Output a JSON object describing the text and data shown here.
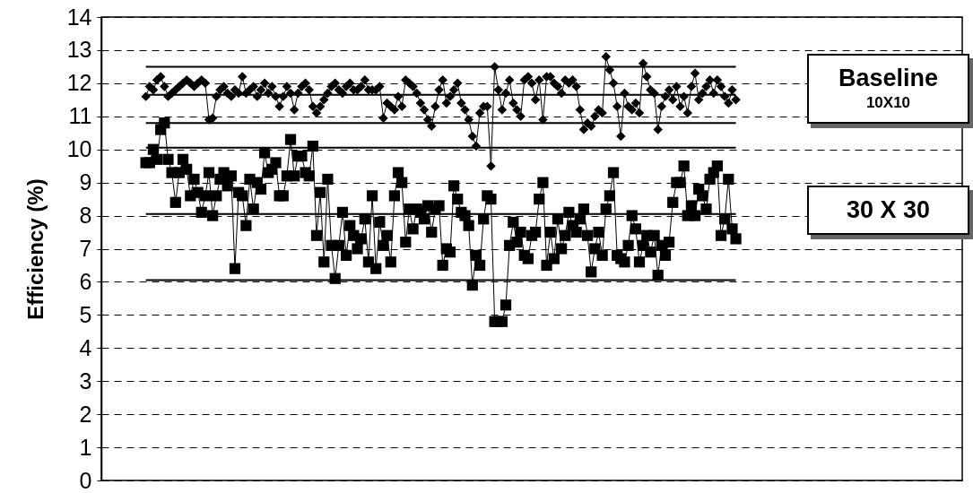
{
  "chart_data": {
    "type": "line",
    "ylabel": "Efficiency (%)",
    "ylim": [
      0,
      14
    ],
    "yticks": [
      0,
      1,
      2,
      3,
      4,
      5,
      6,
      7,
      8,
      9,
      10,
      11,
      12,
      13,
      14
    ],
    "grid": "y",
    "legend": "right",
    "line_style": "solid",
    "categories": [
      null,
      null,
      null,
      null,
      null,
      null,
      null,
      null,
      null,
      null,
      null,
      null,
      null,
      null,
      null,
      null,
      null,
      null,
      null,
      null,
      null,
      null,
      null,
      null,
      null,
      null,
      null,
      null,
      null,
      null,
      null,
      null,
      null,
      null,
      null,
      null,
      null,
      null,
      null,
      null,
      null,
      null,
      null,
      null,
      null,
      null,
      null,
      null,
      null,
      null,
      null,
      null,
      null,
      null,
      null,
      null,
      null,
      null,
      null,
      null,
      null,
      null,
      null,
      null,
      null,
      null,
      null,
      null,
      null,
      null,
      null,
      null,
      null,
      null,
      null,
      null,
      null,
      null,
      null,
      null,
      null,
      null,
      null,
      null,
      null,
      null,
      null,
      null,
      null,
      null,
      null,
      null,
      null,
      null,
      null,
      null,
      null,
      null,
      null,
      null,
      null,
      null,
      null,
      null,
      null,
      null,
      null,
      null,
      null,
      null,
      null,
      null,
      null,
      null,
      null,
      null,
      null,
      null,
      null,
      null,
      null,
      null,
      null,
      null,
      null,
      null,
      null,
      null,
      null,
      null,
      null,
      null,
      null,
      null,
      null,
      null,
      null,
      null,
      null,
      null,
      null,
      null,
      null,
      null,
      null,
      null,
      null,
      null,
      null,
      null,
      null,
      null,
      null,
      null,
      null,
      null,
      null,
      null,
      null,
      null
    ],
    "series": [
      {
        "name": "Baseline",
        "color": "#000000",
        "marker": "diamond",
        "values": [
          11.6,
          11.9,
          11.8,
          12.1,
          12.2,
          11.9,
          11.6,
          11.7,
          11.8,
          11.9,
          12.0,
          12.1,
          12.0,
          11.9,
          12.0,
          12.1,
          12.0,
          10.9,
          10.95,
          11.6,
          11.8,
          11.9,
          11.7,
          11.6,
          11.8,
          11.7,
          12.2,
          11.7,
          11.8,
          11.9,
          11.6,
          11.8,
          12.0,
          11.7,
          11.9,
          11.6,
          11.3,
          11.6,
          11.9,
          11.7,
          11.2,
          11.7,
          11.9,
          12.0,
          11.8,
          11.3,
          11.1,
          11.3,
          11.5,
          11.7,
          11.9,
          12.0,
          11.8,
          11.7,
          11.9,
          12.0,
          11.8,
          11.8,
          11.9,
          12.1,
          11.8,
          11.8,
          11.8,
          11.9,
          10.95,
          11.4,
          11.3,
          11.2,
          11.6,
          11.3,
          12.1,
          12.0,
          11.9,
          11.7,
          11.4,
          11.2,
          10.9,
          10.7,
          11.3,
          11.8,
          12.1,
          11.4,
          11.6,
          11.8,
          12.0,
          11.4,
          11.2,
          10.9,
          10.4,
          10.1,
          11.1,
          11.3,
          11.3,
          9.5,
          12.5,
          11.8,
          11.2,
          11.7,
          12.1,
          11.4,
          11.2,
          11.0,
          12.1,
          12.2,
          12.0,
          11.5,
          12.1,
          10.9,
          12.2,
          12.2,
          12.0,
          11.9,
          11.7,
          12.1,
          12.0,
          12.1,
          11.9,
          11.2,
          10.6,
          10.8,
          10.7,
          11.0,
          11.2,
          11.1,
          12.8,
          12.4,
          12.0,
          11.3,
          10.4,
          11.7,
          11.3,
          11.2,
          11.4,
          11.1,
          12.6,
          12.2,
          11.8,
          11.7,
          10.6,
          11.3,
          11.6,
          11.8,
          11.5,
          11.9,
          11.3,
          11.6,
          11.1,
          11.9,
          12.3,
          11.5,
          11.7,
          11.9,
          12.1,
          11.7,
          12.1,
          11.9,
          11.6,
          11.4,
          11.8,
          11.5
        ]
      },
      {
        "name": "30 X 30",
        "color": "#000000",
        "marker": "square",
        "values": [
          9.6,
          9.6,
          10.0,
          9.7,
          10.6,
          10.8,
          9.7,
          9.3,
          8.4,
          9.3,
          9.7,
          9.4,
          8.6,
          9.1,
          8.7,
          8.1,
          8.6,
          9.3,
          8.0,
          8.6,
          9.1,
          9.3,
          8.9,
          9.2,
          6.4,
          8.7,
          8.6,
          7.7,
          9.1,
          8.2,
          9.0,
          8.8,
          9.9,
          9.3,
          9.4,
          9.6,
          8.6,
          8.6,
          9.2,
          10.3,
          9.2,
          9.8,
          9.8,
          9.3,
          9.2,
          10.1,
          7.4,
          8.7,
          6.6,
          9.1,
          7.1,
          6.1,
          7.1,
          8.1,
          6.8,
          7.7,
          7.4,
          7.0,
          7.3,
          7.9,
          6.6,
          8.6,
          6.4,
          7.8,
          7.1,
          7.4,
          6.6,
          8.6,
          9.3,
          9.0,
          7.2,
          8.2,
          7.6,
          8.2,
          8.1,
          7.9,
          8.3,
          7.5,
          8.2,
          8.3,
          6.5,
          7.0,
          6.9,
          8.9,
          8.5,
          8.1,
          8.0,
          7.7,
          5.9,
          6.8,
          6.5,
          7.9,
          8.6,
          8.5,
          4.8,
          4.8,
          4.8,
          5.3,
          7.1,
          7.8,
          7.2,
          7.5,
          6.8,
          6.7,
          7.4,
          7.5,
          8.5,
          9.0,
          6.5,
          7.5,
          6.7,
          7.9,
          7.0,
          7.4,
          8.1,
          7.7,
          7.5,
          7.9,
          8.2,
          7.4,
          6.3,
          7.0,
          7.5,
          6.8,
          8.2,
          8.6,
          9.3,
          6.8,
          6.7,
          6.6,
          7.1,
          8.0,
          7.6,
          6.6,
          7.1,
          7.4,
          6.9,
          7.4,
          6.2,
          7.1,
          6.8,
          7.2,
          8.4,
          9.0,
          9.0,
          9.5,
          8.0,
          8.3,
          8.0,
          8.8,
          8.6,
          8.2,
          9.1,
          9.3,
          9.5,
          7.4,
          7.9,
          9.1,
          7.6,
          7.3
        ]
      }
    ],
    "ref_lines": [
      {
        "axis": "y",
        "value": 12.5,
        "label": null
      },
      {
        "axis": "y",
        "value": 11.65,
        "label": null
      },
      {
        "axis": "y",
        "value": 10.8,
        "label": null
      },
      {
        "axis": "y",
        "value": 10.05,
        "label": null
      },
      {
        "axis": "y",
        "value": 8.05,
        "label": null
      },
      {
        "axis": "y",
        "value": 6.05,
        "label": null
      }
    ],
    "annotations": [
      "10X10"
    ]
  }
}
